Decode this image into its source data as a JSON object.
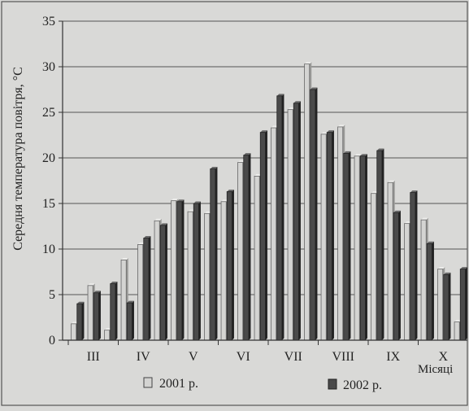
{
  "chart_data": {
    "type": "bar",
    "ylabel": "Середня температура повітря, °C",
    "xlabel": "Місяці",
    "ylim": [
      0,
      35
    ],
    "yticks": [
      0,
      5,
      10,
      15,
      20,
      25,
      30,
      35
    ],
    "grid": true,
    "legend": "bottom",
    "months": [
      "III",
      "IV",
      "V",
      "VI",
      "VII",
      "VIII",
      "IX",
      "X"
    ],
    "periods_per_month": 3,
    "series": [
      {
        "name": "2001 р.",
        "color": "#d4d4d2",
        "values": [
          1.8,
          6.0,
          1.1,
          8.8,
          10.5,
          13.1,
          15.3,
          14.1,
          13.9,
          15.2,
          19.5,
          18.0,
          23.3,
          25.3,
          30.3,
          22.6,
          23.4,
          20.2,
          16.1,
          17.3,
          12.8,
          13.2,
          7.8,
          2.0
        ]
      },
      {
        "name": "2002 р.",
        "color": "#4a4a4a",
        "values": [
          4.0,
          5.2,
          6.2,
          4.1,
          11.2,
          12.6,
          15.2,
          15.0,
          18.8,
          16.3,
          20.3,
          22.8,
          26.8,
          26.0,
          27.5,
          22.8,
          20.5,
          20.2,
          20.8,
          14.0,
          16.2,
          10.6,
          7.2,
          7.8
        ]
      }
    ]
  }
}
